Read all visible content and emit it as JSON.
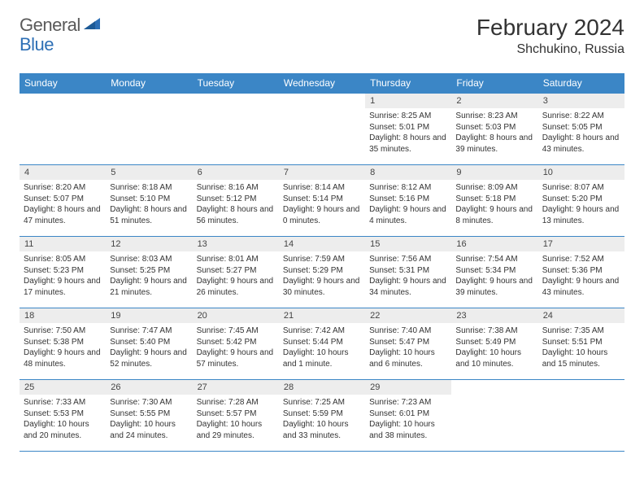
{
  "brand": {
    "part1": "General",
    "part2": "Blue"
  },
  "title": "February 2024",
  "location": "Shchukino, Russia",
  "colors": {
    "header_bg": "#3b86c6",
    "header_text": "#ffffff",
    "daynum_bg": "#ededed",
    "border": "#3b86c6",
    "brand_gray": "#5a5a5a",
    "brand_blue": "#2d6fb5"
  },
  "weekdays": [
    "Sunday",
    "Monday",
    "Tuesday",
    "Wednesday",
    "Thursday",
    "Friday",
    "Saturday"
  ],
  "layout": {
    "first_weekday_index": 4,
    "days_in_month": 29
  },
  "days": {
    "1": {
      "sunrise": "8:25 AM",
      "sunset": "5:01 PM",
      "daylight": "8 hours and 35 minutes."
    },
    "2": {
      "sunrise": "8:23 AM",
      "sunset": "5:03 PM",
      "daylight": "8 hours and 39 minutes."
    },
    "3": {
      "sunrise": "8:22 AM",
      "sunset": "5:05 PM",
      "daylight": "8 hours and 43 minutes."
    },
    "4": {
      "sunrise": "8:20 AM",
      "sunset": "5:07 PM",
      "daylight": "8 hours and 47 minutes."
    },
    "5": {
      "sunrise": "8:18 AM",
      "sunset": "5:10 PM",
      "daylight": "8 hours and 51 minutes."
    },
    "6": {
      "sunrise": "8:16 AM",
      "sunset": "5:12 PM",
      "daylight": "8 hours and 56 minutes."
    },
    "7": {
      "sunrise": "8:14 AM",
      "sunset": "5:14 PM",
      "daylight": "9 hours and 0 minutes."
    },
    "8": {
      "sunrise": "8:12 AM",
      "sunset": "5:16 PM",
      "daylight": "9 hours and 4 minutes."
    },
    "9": {
      "sunrise": "8:09 AM",
      "sunset": "5:18 PM",
      "daylight": "9 hours and 8 minutes."
    },
    "10": {
      "sunrise": "8:07 AM",
      "sunset": "5:20 PM",
      "daylight": "9 hours and 13 minutes."
    },
    "11": {
      "sunrise": "8:05 AM",
      "sunset": "5:23 PM",
      "daylight": "9 hours and 17 minutes."
    },
    "12": {
      "sunrise": "8:03 AM",
      "sunset": "5:25 PM",
      "daylight": "9 hours and 21 minutes."
    },
    "13": {
      "sunrise": "8:01 AM",
      "sunset": "5:27 PM",
      "daylight": "9 hours and 26 minutes."
    },
    "14": {
      "sunrise": "7:59 AM",
      "sunset": "5:29 PM",
      "daylight": "9 hours and 30 minutes."
    },
    "15": {
      "sunrise": "7:56 AM",
      "sunset": "5:31 PM",
      "daylight": "9 hours and 34 minutes."
    },
    "16": {
      "sunrise": "7:54 AM",
      "sunset": "5:34 PM",
      "daylight": "9 hours and 39 minutes."
    },
    "17": {
      "sunrise": "7:52 AM",
      "sunset": "5:36 PM",
      "daylight": "9 hours and 43 minutes."
    },
    "18": {
      "sunrise": "7:50 AM",
      "sunset": "5:38 PM",
      "daylight": "9 hours and 48 minutes."
    },
    "19": {
      "sunrise": "7:47 AM",
      "sunset": "5:40 PM",
      "daylight": "9 hours and 52 minutes."
    },
    "20": {
      "sunrise": "7:45 AM",
      "sunset": "5:42 PM",
      "daylight": "9 hours and 57 minutes."
    },
    "21": {
      "sunrise": "7:42 AM",
      "sunset": "5:44 PM",
      "daylight": "10 hours and 1 minute."
    },
    "22": {
      "sunrise": "7:40 AM",
      "sunset": "5:47 PM",
      "daylight": "10 hours and 6 minutes."
    },
    "23": {
      "sunrise": "7:38 AM",
      "sunset": "5:49 PM",
      "daylight": "10 hours and 10 minutes."
    },
    "24": {
      "sunrise": "7:35 AM",
      "sunset": "5:51 PM",
      "daylight": "10 hours and 15 minutes."
    },
    "25": {
      "sunrise": "7:33 AM",
      "sunset": "5:53 PM",
      "daylight": "10 hours and 20 minutes."
    },
    "26": {
      "sunrise": "7:30 AM",
      "sunset": "5:55 PM",
      "daylight": "10 hours and 24 minutes."
    },
    "27": {
      "sunrise": "7:28 AM",
      "sunset": "5:57 PM",
      "daylight": "10 hours and 29 minutes."
    },
    "28": {
      "sunrise": "7:25 AM",
      "sunset": "5:59 PM",
      "daylight": "10 hours and 33 minutes."
    },
    "29": {
      "sunrise": "7:23 AM",
      "sunset": "6:01 PM",
      "daylight": "10 hours and 38 minutes."
    }
  },
  "labels": {
    "sunrise": "Sunrise:",
    "sunset": "Sunset:",
    "daylight": "Daylight:"
  }
}
